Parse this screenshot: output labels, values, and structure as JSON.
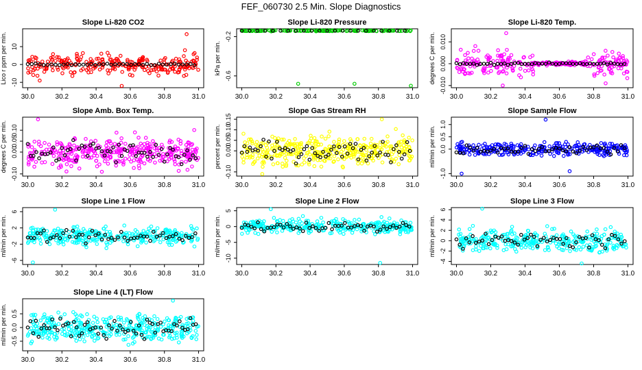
{
  "title": "FEF_060730  2.5 Min. Slope Diagnostics",
  "x_ticks": [
    "30.0",
    "30.2",
    "30.4",
    "30.6",
    "30.8",
    "31.0"
  ],
  "x_range": [
    29.97,
    31.03
  ],
  "colors": {
    "black": "#000000",
    "red": "#ff0000",
    "green": "#00cc00",
    "magenta": "#ff00ff",
    "yellow": "#ffff00",
    "blue": "#0000ff",
    "cyan": "#00ffff"
  },
  "panels": [
    {
      "name": "co2",
      "title": "Slope Li-820 CO2",
      "ylabel": "Lico r ppm per min.",
      "yticks": [
        "-10",
        "0",
        "10"
      ],
      "ytick_values": [
        -10,
        0,
        10
      ],
      "ylim": [
        -13,
        20
      ],
      "color": "red",
      "n": 260,
      "spread": 4,
      "outliers": [
        [
          30.93,
          17
        ],
        [
          30.92,
          8
        ],
        [
          30.55,
          -12
        ],
        [
          30.07,
          -9
        ]
      ]
    },
    {
      "name": "pressure",
      "title": "Slope Li-820 Pressure",
      "ylabel": "kPa per min.",
      "yticks": [
        "-0.2",
        "-0.6"
      ],
      "ytick_values": [
        -0.2,
        -0.6
      ],
      "ylim": [
        -0.72,
        -0.12
      ],
      "color": "green",
      "n": 130,
      "spread": 0.004,
      "base": -0.14,
      "outliers": [
        [
          30.33,
          -0.68
        ],
        [
          30.66,
          -0.68
        ],
        [
          30.99,
          -0.7
        ]
      ]
    },
    {
      "name": "temp",
      "title": "Slope Li-820 Temp.",
      "ylabel": "degrees C per min.",
      "yticks": [
        "-0.010",
        "0.000",
        "0.010"
      ],
      "ytick_values": [
        -0.01,
        0,
        0.01
      ],
      "ylim": [
        -0.011,
        0.016
      ],
      "color": "magenta",
      "n": 300,
      "spread": 0.004,
      "outliers": [
        [
          30.27,
          -0.01
        ],
        [
          30.87,
          -0.009
        ],
        [
          30.29,
          0.014
        ]
      ]
    },
    {
      "name": "box_temp",
      "title": "Slope Amb. Box Temp.",
      "ylabel": "degrees C per min.",
      "yticks": [
        "-0.10",
        "0.00",
        "0.05",
        "0.10"
      ],
      "ytick_values": [
        -0.1,
        0,
        0.05,
        0.1
      ],
      "ylim": [
        -0.11,
        0.16
      ],
      "color": "magenta",
      "n": 360,
      "spread": 0.05,
      "outliers": [
        [
          30.06,
          0.15
        ]
      ]
    },
    {
      "name": "rh",
      "title": "Slope Gas Stream RH",
      "ylabel": "percent per min.",
      "yticks": [
        "-0.10",
        "0.00",
        "0.05",
        "0.10",
        "0.15"
      ],
      "ytick_values": [
        -0.1,
        0,
        0.05,
        0.1,
        0.15
      ],
      "ylim": [
        -0.12,
        0.16
      ],
      "color": "yellow",
      "n": 380,
      "spread": 0.05,
      "outliers": [
        [
          30.82,
          0.15
        ],
        [
          30.12,
          -0.11
        ]
      ]
    },
    {
      "name": "sample_flow",
      "title": "Slope Sample Flow",
      "ylabel": "ml/min per min.",
      "yticks": [
        "-1.0",
        "0.0",
        "0.5",
        "1.0"
      ],
      "ytick_values": [
        -1,
        0,
        0.5,
        1
      ],
      "ylim": [
        -1.1,
        1.3
      ],
      "color": "blue",
      "n": 300,
      "spread": 0.2,
      "outliers": [
        [
          30.52,
          1.2
        ],
        [
          30.03,
          -1.0
        ],
        [
          30.66,
          -0.9
        ]
      ]
    },
    {
      "name": "line1",
      "title": "Slope Line 1 Flow",
      "ylabel": "ml/min per min.",
      "yticks": [
        "-6",
        "-2",
        "2",
        "6"
      ],
      "ytick_values": [
        -6,
        -2,
        2,
        6
      ],
      "ylim": [
        -7,
        7
      ],
      "color": "cyan",
      "n": 320,
      "spread": 1.6,
      "outliers": [
        [
          30.16,
          6.5
        ],
        [
          30.03,
          -6.5
        ]
      ]
    },
    {
      "name": "line2",
      "title": "Slope Line 2 Flow",
      "ylabel": "ml/min per min.",
      "yticks": [
        "-10",
        "-5",
        "0",
        "5"
      ],
      "ytick_values": [
        -10,
        -5,
        0,
        5
      ],
      "ylim": [
        -12,
        6
      ],
      "color": "cyan",
      "n": 320,
      "spread": 1.6,
      "outliers": [
        [
          30.81,
          -11.5
        ],
        [
          30.17,
          5.5
        ]
      ]
    },
    {
      "name": "line3",
      "title": "Slope Line 3 Flow",
      "ylabel": "ml/min per min.",
      "yticks": [
        "-4",
        "-2",
        "0",
        "2",
        "4",
        "6"
      ],
      "ytick_values": [
        -4,
        -2,
        0,
        2,
        4,
        6
      ],
      "ylim": [
        -4.6,
        6.4
      ],
      "color": "cyan",
      "n": 320,
      "spread": 1.5,
      "outliers": [
        [
          30.15,
          6.2
        ],
        [
          30.73,
          -4.4
        ]
      ]
    },
    {
      "name": "line4",
      "title": "Slope Line 4 (LT) Flow",
      "ylabel": "ml/min per min.",
      "yticks": [
        "-0.5",
        "0.0",
        "0.5"
      ],
      "ytick_values": [
        -0.5,
        0,
        0.5
      ],
      "ylim": [
        -0.85,
        1.05
      ],
      "color": "cyan",
      "n": 380,
      "spread": 0.35,
      "outliers": [
        [
          30.85,
          0.98
        ]
      ]
    }
  ]
}
